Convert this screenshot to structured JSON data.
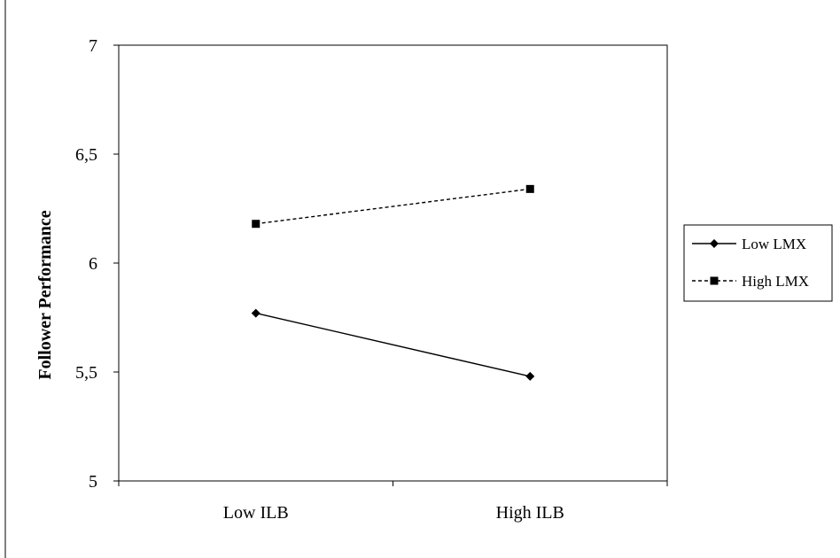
{
  "chart_data": {
    "type": "line",
    "title": "",
    "xlabel": "",
    "ylabel": "Follower Performance",
    "categories": [
      "Low ILB",
      "High ILB"
    ],
    "ylim": [
      5,
      7
    ],
    "yticks": [
      "5",
      "5,5",
      "6",
      "6,5",
      "7"
    ],
    "yticks_values": [
      5,
      5.5,
      6,
      6.5,
      7
    ],
    "grid": false,
    "legend_position": "right",
    "series": [
      {
        "name": "Low LMX",
        "values": [
          5.77,
          5.48
        ],
        "line_style": "solid",
        "marker": "diamond",
        "color": "#000000"
      },
      {
        "name": "High LMX",
        "values": [
          6.18,
          6.34
        ],
        "line_style": "dashed",
        "marker": "square",
        "color": "#000000"
      }
    ]
  }
}
